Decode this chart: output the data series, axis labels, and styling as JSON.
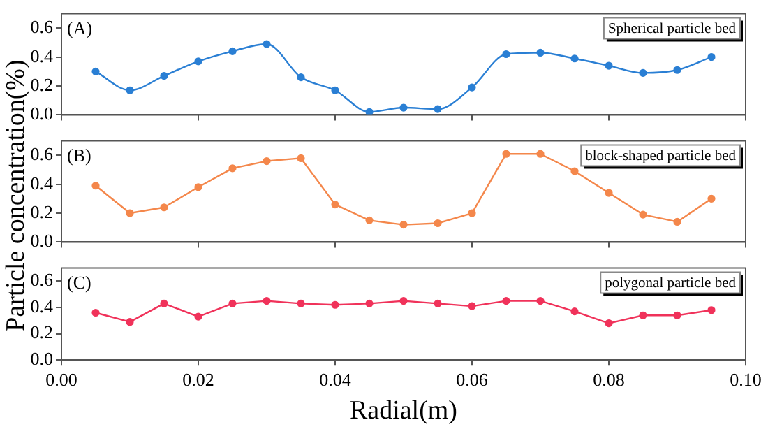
{
  "chart_data": [
    {
      "type": "line",
      "annotations": [
        "(A)"
      ],
      "x": [
        0.005,
        0.01,
        0.015,
        0.02,
        0.025,
        0.03,
        0.035,
        0.04,
        0.045,
        0.05,
        0.055,
        0.06,
        0.065,
        0.07,
        0.075,
        0.08,
        0.085,
        0.09,
        0.095
      ],
      "series": [
        {
          "name": "Spherical particle bed",
          "color": "#2a7fd4",
          "values": [
            0.3,
            0.17,
            0.27,
            0.37,
            0.44,
            0.49,
            0.26,
            0.17,
            0.02,
            0.05,
            0.04,
            0.19,
            0.42,
            0.43,
            0.39,
            0.34,
            0.29,
            0.31,
            0.4
          ]
        }
      ],
      "xlim": [
        0,
        0.1
      ],
      "xticks": [
        {
          "value": 0,
          "label": null
        },
        {
          "value": 0.02,
          "label": null
        },
        {
          "value": 0.04,
          "label": null
        },
        {
          "value": 0.06,
          "label": null
        },
        {
          "value": 0.08,
          "label": null
        },
        {
          "value": 0.1,
          "label": null
        }
      ],
      "ylim": [
        0,
        0.7
      ],
      "yticks": [
        {
          "value": 0,
          "label": "0.0"
        },
        {
          "value": 0.2,
          "label": "0.2"
        },
        {
          "value": 0.4,
          "label": "0.4"
        },
        {
          "value": 0.6,
          "label": "0.6"
        }
      ],
      "tick_labels": "y",
      "grid": false,
      "legend": "top right",
      "marker": "circle",
      "line_style": "solid"
    },
    {
      "type": "line",
      "annotations": [
        "(B)"
      ],
      "ylabel": "Particle concentration(%)",
      "x": [
        0.005,
        0.01,
        0.015,
        0.02,
        0.025,
        0.03,
        0.035,
        0.04,
        0.045,
        0.05,
        0.055,
        0.06,
        0.065,
        0.07,
        0.075,
        0.08,
        0.085,
        0.09,
        0.095
      ],
      "series": [
        {
          "name": "block-shaped particle bed",
          "color": "#f4874b",
          "values": [
            0.39,
            0.2,
            0.24,
            0.38,
            0.51,
            0.56,
            0.58,
            0.26,
            0.15,
            0.12,
            0.13,
            0.2,
            0.61,
            0.61,
            0.49,
            0.34,
            0.19,
            0.14,
            0.3
          ]
        }
      ],
      "xlim": [
        0,
        0.1
      ],
      "xticks": [
        {
          "value": 0,
          "label": null
        },
        {
          "value": 0.02,
          "label": null
        },
        {
          "value": 0.04,
          "label": null
        },
        {
          "value": 0.06,
          "label": null
        },
        {
          "value": 0.08,
          "label": null
        },
        {
          "value": 0.1,
          "label": null
        }
      ],
      "ylim": [
        0,
        0.7
      ],
      "yticks": [
        {
          "value": 0,
          "label": "0.0"
        },
        {
          "value": 0.2,
          "label": "0.2"
        },
        {
          "value": 0.4,
          "label": "0.4"
        },
        {
          "value": 0.6,
          "label": "0.6"
        }
      ],
      "tick_labels": "y",
      "grid": false,
      "legend": "top right",
      "marker": "circle",
      "line_style": "solid"
    },
    {
      "type": "line",
      "annotations": [
        "(C)"
      ],
      "xlabel": "Radial(m)",
      "x": [
        0.005,
        0.01,
        0.015,
        0.02,
        0.025,
        0.03,
        0.035,
        0.04,
        0.045,
        0.05,
        0.055,
        0.06,
        0.065,
        0.07,
        0.075,
        0.08,
        0.085,
        0.09,
        0.095
      ],
      "series": [
        {
          "name": "polygonal particle bed",
          "color": "#f0325a",
          "values": [
            0.36,
            0.29,
            0.43,
            0.33,
            0.43,
            0.45,
            0.43,
            0.42,
            0.43,
            0.45,
            0.43,
            0.41,
            0.45,
            0.45,
            0.37,
            0.28,
            0.34,
            0.34,
            0.38
          ]
        }
      ],
      "xlim": [
        0,
        0.1
      ],
      "xticks": [
        {
          "value": 0,
          "label": "0.00"
        },
        {
          "value": 0.02,
          "label": "0.02"
        },
        {
          "value": 0.04,
          "label": "0.04"
        },
        {
          "value": 0.06,
          "label": "0.06"
        },
        {
          "value": 0.08,
          "label": "0.08"
        },
        {
          "value": 0.1,
          "label": "0.10"
        }
      ],
      "ylim": [
        0,
        0.7
      ],
      "yticks": [
        {
          "value": 0,
          "label": "0.0"
        },
        {
          "value": 0.2,
          "label": "0.2"
        },
        {
          "value": 0.4,
          "label": "0.4"
        },
        {
          "value": 0.6,
          "label": "0.6"
        }
      ],
      "grid": false,
      "legend": "top right",
      "marker": "circle",
      "line_style": "solid"
    }
  ]
}
